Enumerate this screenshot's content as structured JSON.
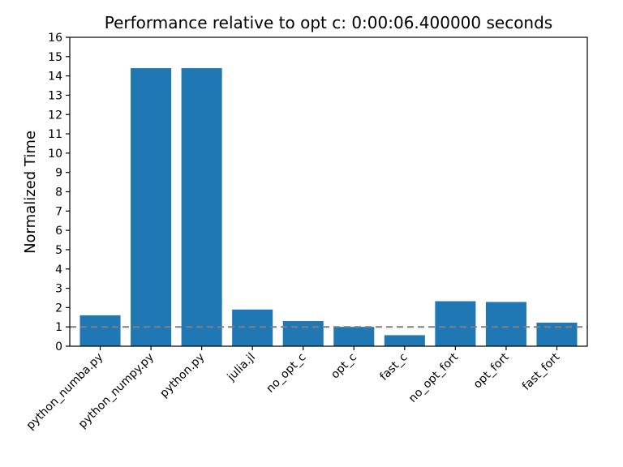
{
  "chart_data": {
    "type": "bar",
    "title": "Performance relative to opt c: 0:00:06.400000 seconds",
    "xlabel": "",
    "ylabel": "Normalized Time",
    "categories": [
      "python_numba.py",
      "python_numpy.py",
      "python.py",
      "julia.jl",
      "no_opt_c",
      "opt_c",
      "fast_c",
      "no_opt_fort",
      "opt_fort",
      "fast_fort"
    ],
    "values": [
      1.6,
      14.4,
      14.4,
      1.9,
      1.3,
      1.0,
      0.57,
      2.33,
      2.29,
      1.22
    ],
    "ylim": [
      0,
      16
    ],
    "yticks": [
      0,
      1,
      2,
      3,
      4,
      5,
      6,
      7,
      8,
      9,
      10,
      11,
      12,
      13,
      14,
      15,
      16
    ],
    "reference_line": {
      "value": 1.0,
      "style": "dashed",
      "color": "#808080"
    },
    "bar_color": "#1f77b4",
    "grid": false
  }
}
